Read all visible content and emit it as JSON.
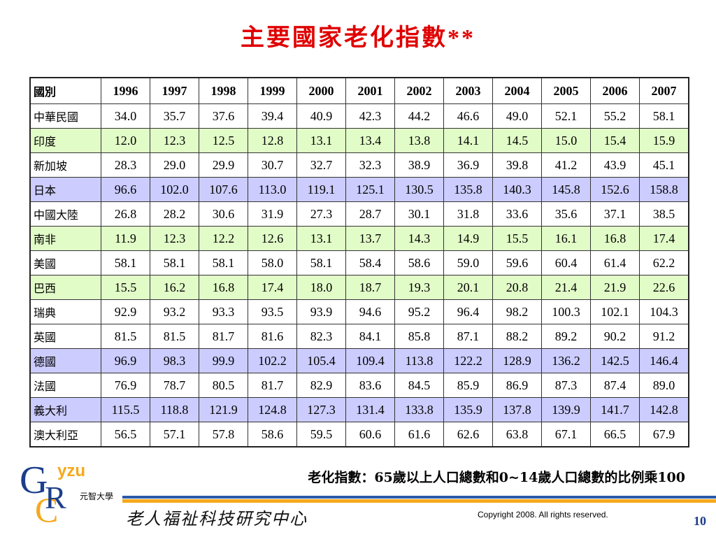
{
  "title": "主要國家老化指數**",
  "table": {
    "header": [
      "國別",
      "1996",
      "1997",
      "1998",
      "1999",
      "2000",
      "2001",
      "2002",
      "2003",
      "2004",
      "2005",
      "2006",
      "2007"
    ],
    "rows": [
      [
        "中華民國",
        "34.0",
        "35.7",
        "37.6",
        "39.4",
        "40.9",
        "42.3",
        "44.2",
        "46.6",
        "49.0",
        "52.1",
        "55.2",
        "58.1"
      ],
      [
        "印度",
        "12.0",
        "12.3",
        "12.5",
        "12.8",
        "13.1",
        "13.4",
        "13.8",
        "14.1",
        "14.5",
        "15.0",
        "15.4",
        "15.9"
      ],
      [
        "新加坡",
        "28.3",
        "29.0",
        "29.9",
        "30.7",
        "32.7",
        "32.3",
        "38.9",
        "36.9",
        "39.8",
        "41.2",
        "43.9",
        "45.1"
      ],
      [
        "日本",
        "96.6",
        "102.0",
        "107.6",
        "113.0",
        "119.1",
        "125.1",
        "130.5",
        "135.8",
        "140.3",
        "145.8",
        "152.6",
        "158.8"
      ],
      [
        "中國大陸",
        "26.8",
        "28.2",
        "30.6",
        "31.9",
        "27.3",
        "28.7",
        "30.1",
        "31.8",
        "33.6",
        "35.6",
        "37.1",
        "38.5"
      ],
      [
        "南非",
        "11.9",
        "12.3",
        "12.2",
        "12.6",
        "13.1",
        "13.7",
        "14.3",
        "14.9",
        "15.5",
        "16.1",
        "16.8",
        "17.4"
      ],
      [
        "美國",
        "58.1",
        "58.1",
        "58.1",
        "58.0",
        "58.1",
        "58.4",
        "58.6",
        "59.0",
        "59.6",
        "60.4",
        "61.4",
        "62.2"
      ],
      [
        "巴西",
        "15.5",
        "16.2",
        "16.8",
        "17.4",
        "18.0",
        "18.7",
        "19.3",
        "20.1",
        "20.8",
        "21.4",
        "21.9",
        "22.6"
      ],
      [
        "瑞典",
        "92.9",
        "93.2",
        "93.3",
        "93.5",
        "93.9",
        "94.6",
        "95.2",
        "96.4",
        "98.2",
        "100.3",
        "102.1",
        "104.3"
      ],
      [
        "英國",
        "81.5",
        "81.5",
        "81.7",
        "81.6",
        "82.3",
        "84.1",
        "85.8",
        "87.1",
        "88.2",
        "89.2",
        "90.2",
        "91.2"
      ],
      [
        "德國",
        "96.9",
        "98.3",
        "99.9",
        "102.2",
        "105.4",
        "109.4",
        "113.8",
        "122.2",
        "128.9",
        "136.2",
        "142.5",
        "146.4"
      ],
      [
        "法國",
        "76.9",
        "78.7",
        "80.5",
        "81.7",
        "82.9",
        "83.6",
        "84.5",
        "85.9",
        "86.9",
        "87.3",
        "87.4",
        "89.0"
      ],
      [
        "義大利",
        "115.5",
        "118.8",
        "121.9",
        "124.8",
        "127.3",
        "131.4",
        "133.8",
        "135.9",
        "137.8",
        "139.9",
        "141.7",
        "142.8"
      ],
      [
        "澳大利亞",
        "56.5",
        "57.1",
        "57.8",
        "58.6",
        "59.5",
        "60.6",
        "61.6",
        "62.6",
        "63.8",
        "67.1",
        "66.5",
        "67.9"
      ]
    ]
  },
  "footnote": "老化指數：65歲以上人口總數和0~14歲人口總數的比例乘100",
  "logo": {
    "g": "G",
    "yzu": "yzu",
    "c": "C",
    "r": "R",
    "university": "元智大學",
    "center": "老人福祉科技研究中心"
  },
  "copyright": "Copyright 2008. All rights reserved.",
  "page_number": "10"
}
